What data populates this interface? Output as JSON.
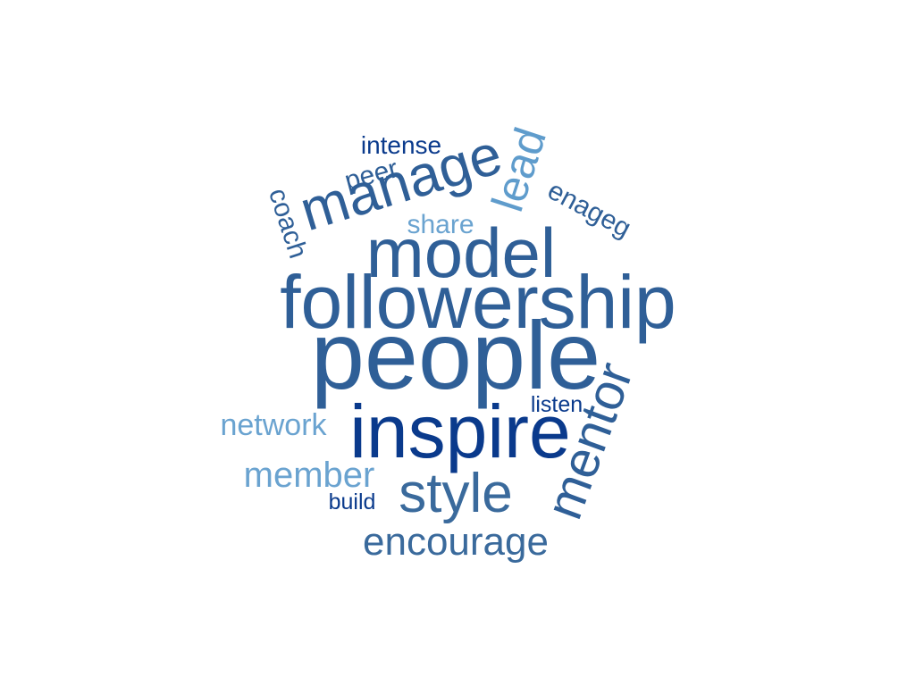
{
  "colors": {
    "navy": "#0a3a8c",
    "mid_blue": "#2f5f97",
    "steel_blue": "#3a6a9c",
    "light_blue": "#5f9ccc",
    "sky_blue": "#6aa3d0"
  },
  "words": [
    {
      "text": "people",
      "color": "#2f5f97"
    },
    {
      "text": "followership",
      "color": "#2f5f97"
    },
    {
      "text": "inspire",
      "color": "#0a3a8c"
    },
    {
      "text": "model",
      "color": "#2f5f97"
    },
    {
      "text": "manage",
      "color": "#2f5f97"
    },
    {
      "text": "style",
      "color": "#3a6a9c"
    },
    {
      "text": "mentor",
      "color": "#2f5f97"
    },
    {
      "text": "encourage",
      "color": "#3a6a9c"
    },
    {
      "text": "lead",
      "color": "#5f9ccc"
    },
    {
      "text": "member",
      "color": "#6aa3d0"
    },
    {
      "text": "network",
      "color": "#6aa3d0"
    },
    {
      "text": "share",
      "color": "#6aa3d0"
    },
    {
      "text": "enageg",
      "color": "#2f5f97"
    },
    {
      "text": "coach",
      "color": "#2f5f97"
    },
    {
      "text": "peer",
      "color": "#2f5f97"
    },
    {
      "text": "intense",
      "color": "#0a3a8c"
    },
    {
      "text": "listen",
      "color": "#0a3a8c"
    },
    {
      "text": "build",
      "color": "#0a3a8c"
    }
  ]
}
